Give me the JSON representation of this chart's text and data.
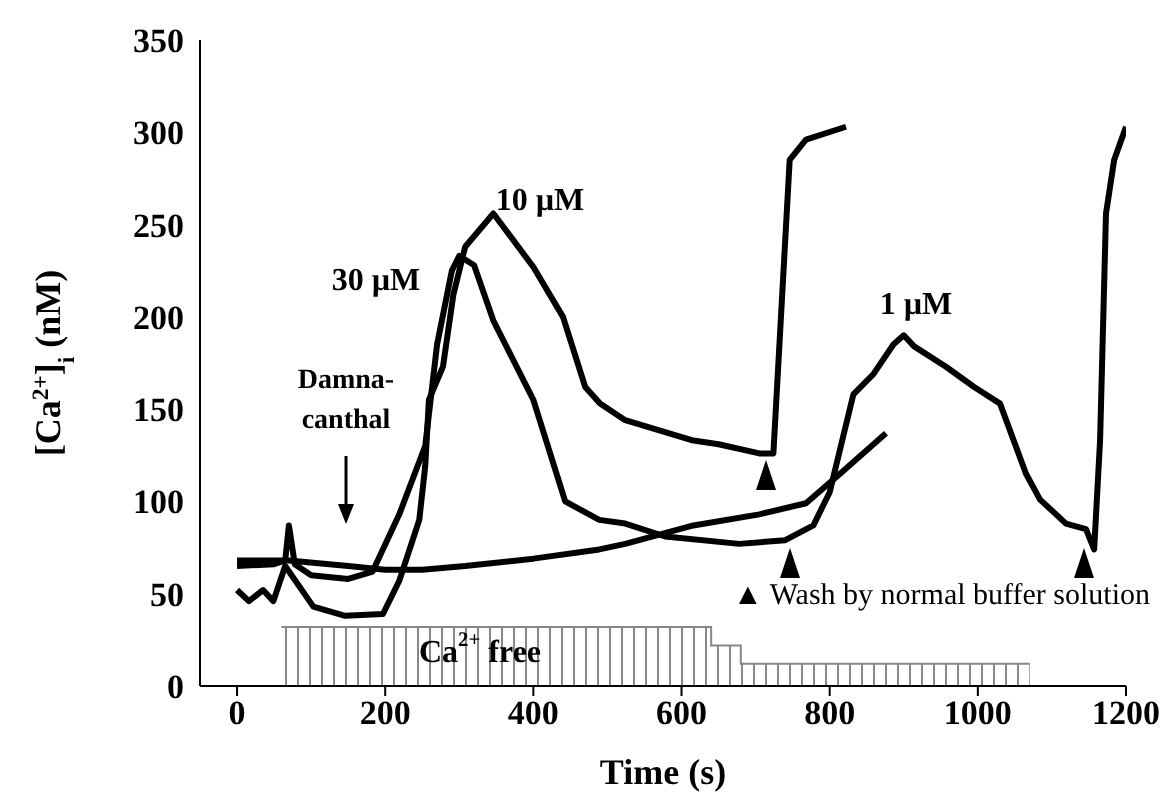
{
  "chart_data": {
    "type": "line",
    "xlabel": "Time (s)",
    "ylabel": "[Ca$^{2+}$]$_{i}$ (nM)",
    "xlim": [
      -50,
      1200
    ],
    "xticks": [
      0,
      200,
      400,
      600,
      800,
      1000,
      1200
    ],
    "ylim": [
      0,
      350
    ],
    "yticks": [
      0,
      50,
      100,
      150,
      200,
      250,
      300,
      350
    ],
    "marker": "none",
    "line_style": "solid",
    "series": [
      {
        "color": "#000000",
        "x": [
          0,
          16,
          35,
          49,
          65,
          103,
          146,
          197,
          219,
          246,
          254,
          259,
          278,
          292,
          308,
          346,
          400,
          440,
          470,
          490,
          524,
          616,
          650,
          705,
          724,
          746,
          768,
          822
        ],
        "values": [
          52,
          46,
          52,
          46,
          65,
          43,
          38,
          39,
          57,
          90,
          119,
          155,
          173,
          212,
          238,
          256,
          227,
          200,
          162,
          153,
          144,
          133,
          131,
          126,
          126,
          285,
          296,
          303
        ]
      },
      {
        "color": "#000000",
        "x": [
          0,
          50,
          65,
          70,
          78,
          100,
          150,
          183,
          219,
          254,
          270,
          290,
          300,
          320,
          346,
          400,
          443,
          489,
          524,
          578,
          678,
          740,
          778,
          800,
          832,
          859,
          886,
          900,
          914,
          957,
          995,
          1030,
          1065,
          1084,
          1119,
          1146,
          1157,
          1165,
          1173,
          1184,
          1200
        ],
        "values": [
          65,
          66,
          68,
          87,
          66,
          60,
          58,
          62,
          93,
          130,
          185,
          225,
          233,
          228,
          198,
          155,
          100,
          90,
          88,
          81,
          77,
          79,
          87,
          105,
          158,
          169,
          185,
          190,
          184,
          173,
          162,
          153,
          115,
          101,
          88,
          85,
          74,
          133,
          256,
          285,
          303
        ]
      },
      {
        "color": "#000000",
        "x": [
          0,
          70,
          150,
          200,
          250,
          308,
          400,
          489,
          524,
          616,
          705,
          768,
          814,
          876
        ],
        "values": [
          68,
          68,
          65,
          63,
          63,
          65,
          69,
          74,
          77,
          87,
          93,
          99,
          115,
          137
        ]
      },
      {
        "type": "area",
        "color": "#888888",
        "x": [
          60,
          640,
          640,
          680,
          680,
          1070
        ],
        "values": [
          32,
          32,
          22,
          22,
          12,
          12
        ]
      }
    ],
    "annotations": [
      "Damna-canthal",
      "30 µM",
      "10 µM",
      "1 µM",
      "Ca$^{2+}$ free",
      "▲ Wash by normal buffer solution"
    ]
  }
}
